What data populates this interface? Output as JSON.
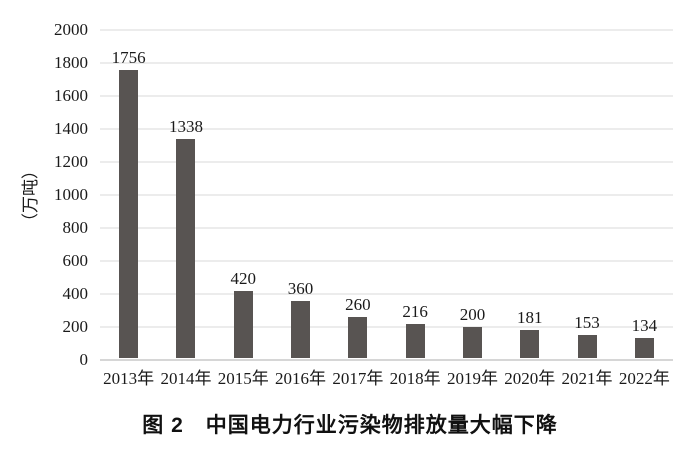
{
  "figure": {
    "caption": "图 2　中国电力行业污染物排放量大幅下降",
    "ylabel": "（万吨）"
  },
  "chart_data": {
    "type": "bar",
    "title": "图 2　中国电力行业污染物排放量大幅下降",
    "xlabel": "",
    "ylabel": "（万吨）",
    "categories": [
      "2013年",
      "2014年",
      "2015年",
      "2016年",
      "2017年",
      "2018年",
      "2019年",
      "2020年",
      "2021年",
      "2022年"
    ],
    "values": [
      1756,
      1338,
      420,
      360,
      260,
      216,
      200,
      181,
      153,
      134
    ],
    "ylim": [
      0,
      2000
    ],
    "yticks": [
      2000,
      1800,
      1600,
      1400,
      1200,
      1000,
      800,
      600,
      400,
      200,
      0
    ],
    "grid": true,
    "legend": "none",
    "bar_color": "#585452",
    "gridline_color": "#ececec",
    "axis_line_color": "#d6d6d6",
    "text_color": "#1a1a1a"
  }
}
